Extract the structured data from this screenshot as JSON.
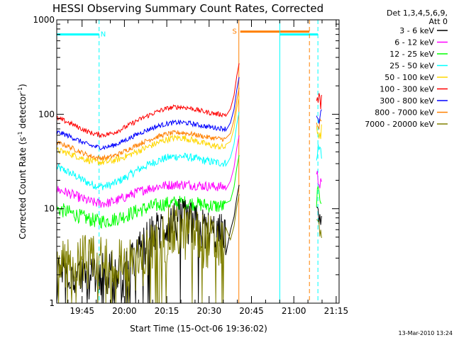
{
  "chart_data": {
    "type": "line",
    "title": "HESSI Observing Summary Count Rates, Corrected",
    "xlabel": "Start Time (15-Oct-06 19:36:02)",
    "ylabel": "Corrected Count Rate (s",
    "ylabel_sup1": "-1",
    "ylabel_mid": " detector",
    "ylabel_sup2": "-1",
    "ylabel_end": ")",
    "yscale": "log",
    "ylim": [
      1,
      1000
    ],
    "xlim_minutes": [
      0,
      100
    ],
    "x_ticks": [
      {
        "minutes": 8.97,
        "label": "19:45"
      },
      {
        "minutes": 23.97,
        "label": "20:00"
      },
      {
        "minutes": 38.97,
        "label": "20:15"
      },
      {
        "minutes": 53.97,
        "label": "20:30"
      },
      {
        "minutes": 68.97,
        "label": "20:45"
      },
      {
        "minutes": 83.97,
        "label": "21:00"
      },
      {
        "minutes": 98.97,
        "label": "21:15"
      }
    ],
    "y_ticks": [
      {
        "value": 1,
        "label": "1"
      },
      {
        "value": 10,
        "label": "10"
      },
      {
        "value": 100,
        "label": "100"
      },
      {
        "value": 1000,
        "label": "1000"
      }
    ],
    "legend_header": [
      "Det 1,3,4,5,6,9,",
      "Att 0"
    ],
    "legend_placement": "right",
    "series": [
      {
        "name": "3 - 6 keV",
        "color": "#000000"
      },
      {
        "name": "6 - 12 keV",
        "color": "#ff00ff"
      },
      {
        "name": "12 - 25 keV",
        "color": "#00ff00"
      },
      {
        "name": "25 - 50 keV",
        "color": "#00ffff"
      },
      {
        "name": "50 - 100 keV",
        "color": "#ffd700"
      },
      {
        "name": "100 - 300 keV",
        "color": "#ff0000"
      },
      {
        "name": "300 - 800 keV",
        "color": "#0000ff"
      },
      {
        "name": "800 - 7000 keV",
        "color": "#ff8000"
      },
      {
        "name": "7000 - 20000 keV",
        "color": "#808000"
      }
    ],
    "bars": [
      {
        "label": "N",
        "x_start": 0,
        "x_end": 15,
        "value": 700,
        "color": "#00ffff"
      },
      {
        "label": "S",
        "x_start": 65,
        "x_end": 89.5,
        "value": 750,
        "color": "#ff8000"
      },
      {
        "label": "",
        "x_start": 79,
        "x_end": 92.5,
        "value": 700,
        "color": "#00ffff"
      }
    ],
    "vlines": [
      {
        "minutes": 0,
        "color": "#00ffff",
        "style": "solid"
      },
      {
        "minutes": 15,
        "color": "#00ffff",
        "style": "dashed"
      },
      {
        "minutes": 64.5,
        "color": "#ff8000",
        "style": "solid"
      },
      {
        "minutes": 79,
        "color": "#00ffff",
        "style": "solid"
      },
      {
        "minutes": 89.5,
        "color": "#ff8000",
        "style": "dashed"
      },
      {
        "minutes": 92.5,
        "color": "#00ffff",
        "style": "dashed"
      }
    ],
    "data_gap_minutes": [
      65,
      92
    ]
  },
  "footer": {
    "timestamp": "13-Mar-2010 13:24"
  }
}
